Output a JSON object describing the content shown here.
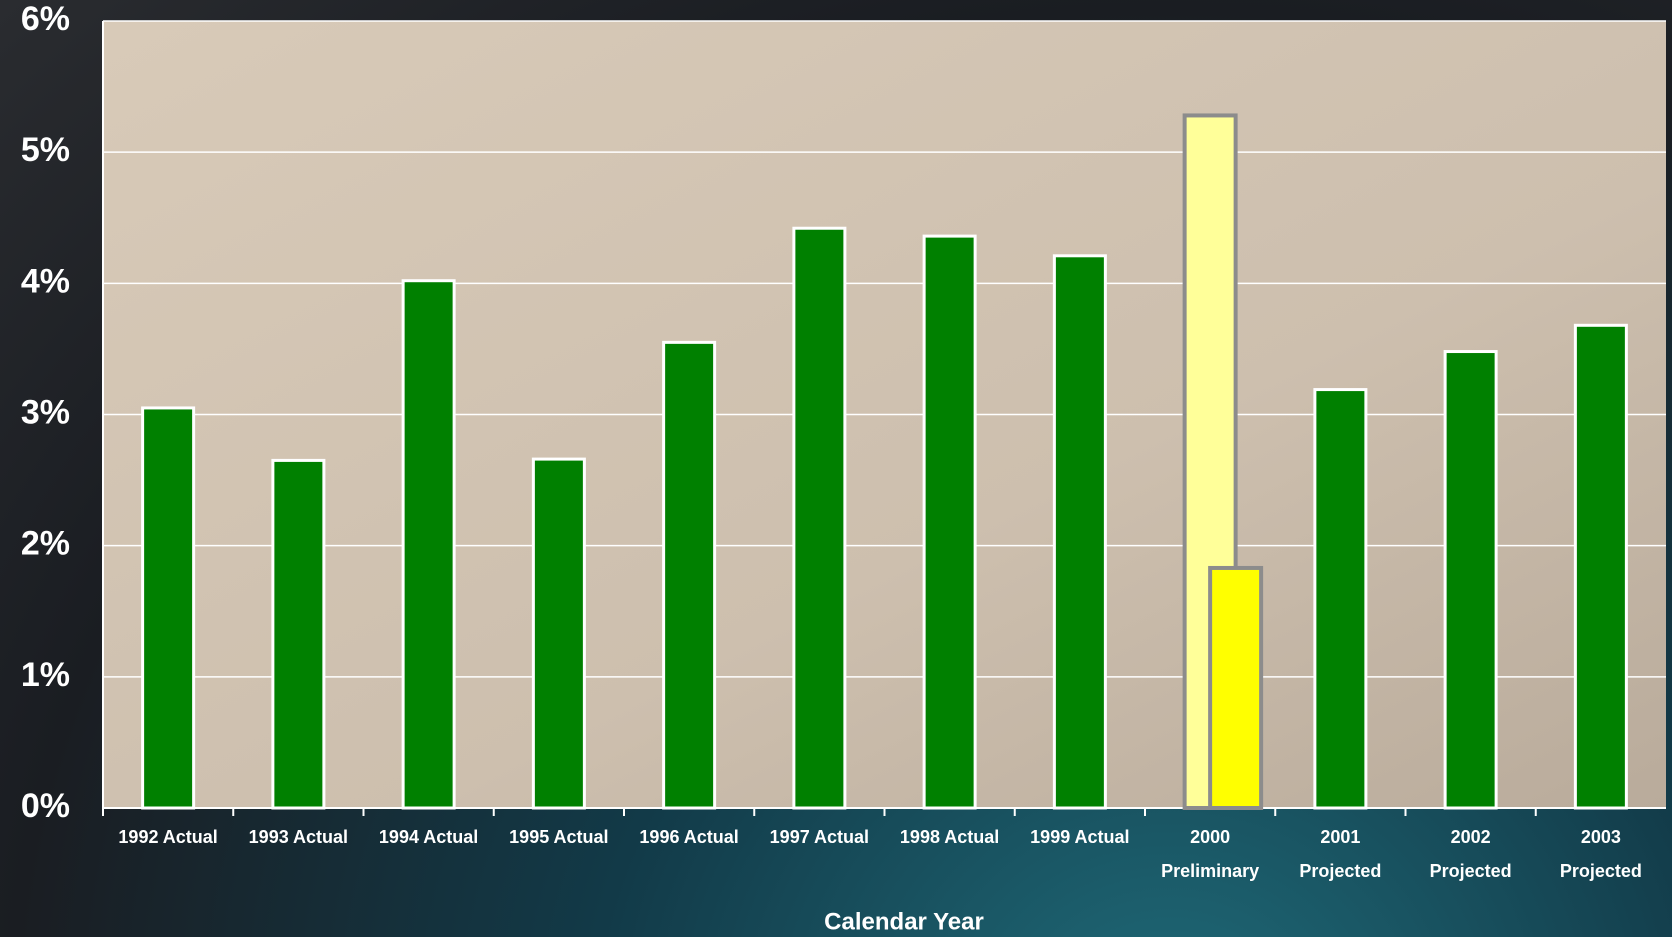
{
  "chart_data": {
    "type": "bar",
    "x_label": "Calendar Year",
    "categories": [
      "1992 Actual",
      "1993 Actual",
      "1994 Actual",
      "1995 Actual",
      "1996 Actual",
      "1997 Actual",
      "1998 Actual",
      "1999 Actual",
      "2000 Preliminary",
      "2001 Projected",
      "2002 Projected",
      "2003 Projected"
    ],
    "series": [
      {
        "color": "#008000",
        "values": [
          3.05,
          2.65,
          4.02,
          2.66,
          3.55,
          4.42,
          4.36,
          4.21,
          null,
          3.19,
          3.48,
          3.68
        ]
      },
      {
        "color": "#ffff99",
        "values": [
          null,
          null,
          null,
          null,
          null,
          null,
          null,
          null,
          5.28,
          null,
          null,
          null
        ]
      },
      {
        "color": "#ffff00",
        "values": [
          null,
          null,
          null,
          null,
          null,
          null,
          null,
          null,
          1.83,
          null,
          null,
          null
        ]
      }
    ],
    "ylim": [
      0,
      6
    ],
    "yticks": [
      {
        "value": 0,
        "label": "0%"
      },
      {
        "value": 1,
        "label": "1%"
      },
      {
        "value": 2,
        "label": "2%"
      },
      {
        "value": 3,
        "label": "3%"
      },
      {
        "value": 4,
        "label": "4%"
      },
      {
        "value": 5,
        "label": "5%"
      },
      {
        "value": 6,
        "label": "6%"
      }
    ],
    "grid": true
  }
}
